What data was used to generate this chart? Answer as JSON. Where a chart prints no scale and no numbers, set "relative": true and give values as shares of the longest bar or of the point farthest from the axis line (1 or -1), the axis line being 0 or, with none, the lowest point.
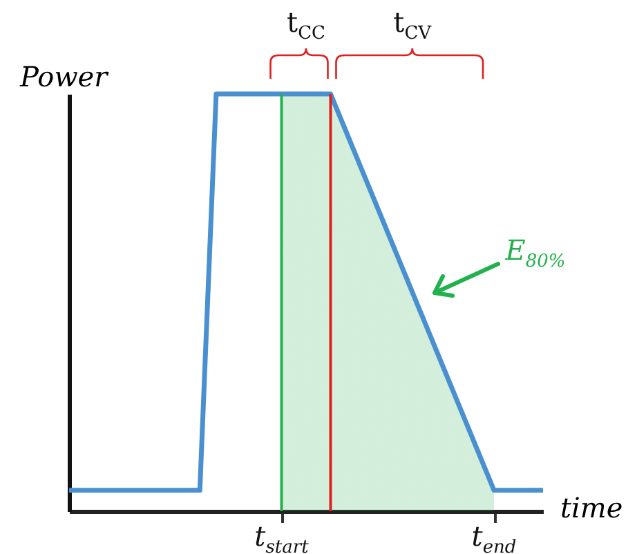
{
  "chart_data": {
    "type": "line",
    "relative": true,
    "ylabel": "Power",
    "xlabel": "time",
    "categories": [
      null,
      null,
      null,
      null,
      null,
      null,
      null,
      null,
      null,
      null,
      null,
      null,
      null,
      "t$_{start}$",
      null,
      null,
      null,
      null,
      null,
      null,
      null,
      null,
      null,
      null,
      null,
      null,
      "t$_{end}$",
      null,
      null,
      null
    ],
    "series": [
      {
        "type": "area",
        "color": "#22b14c",
        "values": [
          null,
          null,
          null,
          null,
          null,
          null,
          null,
          null,
          null,
          null,
          null,
          null,
          null,
          1,
          1,
          1,
          1,
          0.905,
          0.81,
          0.715,
          0.62,
          0.525,
          0.43,
          0.335,
          0.24,
          0.145,
          0.05,
          null,
          null,
          null
        ]
      },
      {
        "color": "#4a90d0",
        "values": [
          0.05,
          0.05,
          0.05,
          0.05,
          0.05,
          0.05,
          0.05,
          0.05,
          0.05,
          1,
          1,
          1,
          1,
          1,
          1,
          1,
          1,
          0.905,
          0.81,
          0.715,
          0.62,
          0.525,
          0.43,
          0.335,
          0.24,
          0.145,
          0.05,
          0.05,
          0.05,
          0.05
        ]
      }
    ],
    "ref_lines": [
      {
        "axis": "x",
        "value": "t$_{start}$",
        "color": "#22b14c"
      }
    ],
    "annotations": [
      "t$_{CC}$",
      "t$_{CV}$",
      "E$_{80%}$"
    ],
    "grid": false,
    "marker": "none"
  }
}
